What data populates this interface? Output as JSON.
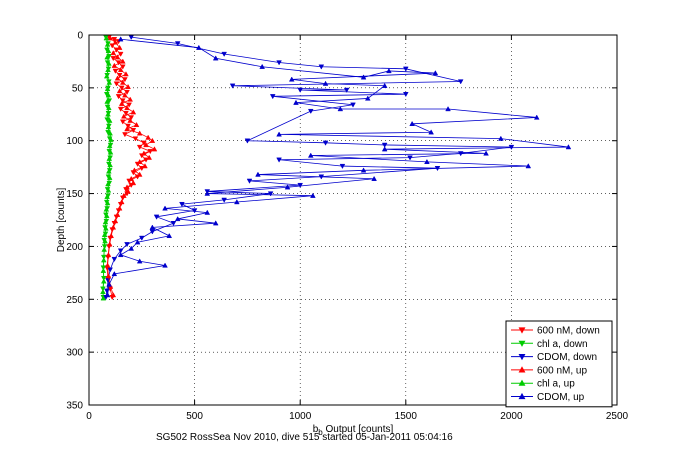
{
  "figure_caption": "SG502 RossSea Nov 2010, dive 515 started 05-Jan-2011 05:04:16",
  "chart_data": {
    "type": "scatter",
    "xlabel": "b_b Output [counts]",
    "xlabel_main": "b",
    "xlabel_sub": "b",
    "xlabel_rest": " Output [counts]",
    "ylabel": "Depth [counts]",
    "xlim": [
      0,
      2500
    ],
    "ylim": [
      0,
      350
    ],
    "y_reversed": true,
    "xticks": [
      0,
      500,
      1000,
      1500,
      2000,
      2500
    ],
    "yticks": [
      0,
      50,
      100,
      150,
      200,
      250,
      300,
      350
    ],
    "grid": "dotted",
    "legend_position": "bottom-right",
    "legend": [
      {
        "name": "600 nM, down",
        "color": "#ff0000",
        "marker": "triangle-down"
      },
      {
        "name": "chl a, down",
        "color": "#00cc00",
        "marker": "triangle-down"
      },
      {
        "name": "CDOM, down",
        "color": "#0000cc",
        "marker": "triangle-down"
      },
      {
        "name": "600 nM, up",
        "color": "#ff0000",
        "marker": "triangle-up"
      },
      {
        "name": "chl a, up",
        "color": "#00cc00",
        "marker": "triangle-up"
      },
      {
        "name": "CDOM, up",
        "color": "#0000cc",
        "marker": "triangle-up"
      }
    ],
    "series": [
      {
        "name": "600 nM, down",
        "color": "#ff0000",
        "marker": "triangle-down",
        "points": [
          [
            95,
            2
          ],
          [
            120,
            4
          ],
          [
            140,
            6
          ],
          [
            110,
            10
          ],
          [
            130,
            14
          ],
          [
            150,
            18
          ],
          [
            115,
            22
          ],
          [
            140,
            26
          ],
          [
            160,
            30
          ],
          [
            125,
            34
          ],
          [
            145,
            38
          ],
          [
            170,
            42
          ],
          [
            130,
            46
          ],
          [
            155,
            50
          ],
          [
            180,
            54
          ],
          [
            140,
            58
          ],
          [
            160,
            62
          ],
          [
            190,
            66
          ],
          [
            150,
            70
          ],
          [
            175,
            74
          ],
          [
            200,
            78
          ],
          [
            160,
            82
          ],
          [
            185,
            86
          ],
          [
            210,
            90
          ],
          [
            170,
            94
          ],
          [
            220,
            98
          ],
          [
            260,
            102
          ],
          [
            240,
            106
          ],
          [
            290,
            110
          ],
          [
            250,
            114
          ],
          [
            270,
            118
          ],
          [
            230,
            122
          ],
          [
            250,
            126
          ],
          [
            210,
            130
          ],
          [
            230,
            134
          ],
          [
            190,
            138
          ],
          [
            200,
            142
          ],
          [
            175,
            146
          ],
          [
            180,
            150
          ],
          [
            160,
            154
          ],
          [
            150,
            160
          ],
          [
            140,
            166
          ],
          [
            130,
            172
          ],
          [
            120,
            178
          ],
          [
            110,
            184
          ],
          [
            100,
            192
          ],
          [
            95,
            200
          ],
          [
            90,
            210
          ],
          [
            85,
            220
          ],
          [
            90,
            230
          ],
          [
            100,
            240
          ],
          [
            110,
            248
          ]
        ]
      },
      {
        "name": "chl a, down",
        "color": "#00cc00",
        "marker": "triangle-down",
        "points": [
          [
            80,
            2
          ],
          [
            90,
            8
          ],
          [
            85,
            14
          ],
          [
            95,
            20
          ],
          [
            88,
            26
          ],
          [
            92,
            32
          ],
          [
            86,
            38
          ],
          [
            94,
            44
          ],
          [
            90,
            50
          ],
          [
            84,
            56
          ],
          [
            96,
            62
          ],
          [
            88,
            68
          ],
          [
            92,
            74
          ],
          [
            86,
            80
          ],
          [
            94,
            86
          ],
          [
            90,
            92
          ],
          [
            98,
            98
          ],
          [
            102,
            104
          ],
          [
            96,
            110
          ],
          [
            100,
            116
          ],
          [
            94,
            122
          ],
          [
            98,
            128
          ],
          [
            92,
            134
          ],
          [
            96,
            140
          ],
          [
            88,
            146
          ],
          [
            90,
            152
          ],
          [
            84,
            158
          ],
          [
            86,
            164
          ],
          [
            80,
            170
          ],
          [
            82,
            176
          ],
          [
            76,
            182
          ],
          [
            78,
            188
          ],
          [
            72,
            194
          ],
          [
            74,
            200
          ],
          [
            70,
            210
          ],
          [
            68,
            220
          ],
          [
            70,
            230
          ],
          [
            66,
            240
          ],
          [
            68,
            248
          ]
        ]
      },
      {
        "name": "CDOM, down",
        "color": "#0000cc",
        "marker": "triangle-down",
        "points": [
          [
            200,
            2
          ],
          [
            420,
            8
          ],
          [
            640,
            18
          ],
          [
            900,
            26
          ],
          [
            1100,
            30
          ],
          [
            1500,
            32
          ],
          [
            1760,
            44
          ],
          [
            680,
            48
          ],
          [
            1220,
            52
          ],
          [
            1000,
            52
          ],
          [
            1500,
            56
          ],
          [
            870,
            58
          ],
          [
            1250,
            66
          ],
          [
            1050,
            72
          ],
          [
            750,
            100
          ],
          [
            1120,
            102
          ],
          [
            1400,
            104
          ],
          [
            2000,
            106
          ],
          [
            1760,
            112
          ],
          [
            1520,
            116
          ],
          [
            900,
            118
          ],
          [
            1200,
            124
          ],
          [
            1650,
            126
          ],
          [
            1100,
            134
          ],
          [
            760,
            138
          ],
          [
            1000,
            142
          ],
          [
            560,
            148
          ],
          [
            860,
            150
          ],
          [
            640,
            156
          ],
          [
            440,
            160
          ],
          [
            500,
            166
          ],
          [
            320,
            172
          ],
          [
            400,
            178
          ],
          [
            300,
            186
          ],
          [
            250,
            192
          ],
          [
            180,
            198
          ],
          [
            150,
            204
          ],
          [
            120,
            212
          ],
          [
            100,
            222
          ],
          [
            90,
            232
          ],
          [
            85,
            242
          ],
          [
            80,
            248
          ]
        ]
      },
      {
        "name": "600 nM, up",
        "color": "#ff0000",
        "marker": "triangle-up",
        "points": [
          [
            100,
            3
          ],
          [
            125,
            7
          ],
          [
            145,
            12
          ],
          [
            115,
            17
          ],
          [
            135,
            21
          ],
          [
            160,
            25
          ],
          [
            120,
            29
          ],
          [
            150,
            33
          ],
          [
            175,
            37
          ],
          [
            135,
            41
          ],
          [
            160,
            45
          ],
          [
            185,
            49
          ],
          [
            145,
            53
          ],
          [
            170,
            57
          ],
          [
            195,
            61
          ],
          [
            155,
            65
          ],
          [
            180,
            69
          ],
          [
            210,
            73
          ],
          [
            165,
            77
          ],
          [
            195,
            81
          ],
          [
            225,
            85
          ],
          [
            180,
            89
          ],
          [
            240,
            93
          ],
          [
            280,
            97
          ],
          [
            300,
            100
          ],
          [
            270,
            104
          ],
          [
            310,
            108
          ],
          [
            260,
            112
          ],
          [
            285,
            116
          ],
          [
            240,
            120
          ],
          [
            265,
            124
          ],
          [
            215,
            128
          ],
          [
            240,
            132
          ],
          [
            200,
            136
          ],
          [
            210,
            140
          ],
          [
            180,
            144
          ],
          [
            185,
            148
          ],
          [
            165,
            152
          ],
          [
            155,
            158
          ],
          [
            145,
            164
          ],
          [
            135,
            170
          ],
          [
            125,
            176
          ],
          [
            115,
            182
          ],
          [
            105,
            190
          ],
          [
            98,
            198
          ],
          [
            92,
            208
          ],
          [
            88,
            218
          ],
          [
            92,
            228
          ],
          [
            102,
            238
          ],
          [
            115,
            246
          ]
        ]
      },
      {
        "name": "chl a, up",
        "color": "#00cc00",
        "marker": "triangle-up",
        "points": [
          [
            82,
            3
          ],
          [
            88,
            9
          ],
          [
            92,
            15
          ],
          [
            86,
            21
          ],
          [
            94,
            27
          ],
          [
            90,
            33
          ],
          [
            84,
            39
          ],
          [
            96,
            45
          ],
          [
            88,
            51
          ],
          [
            92,
            57
          ],
          [
            86,
            63
          ],
          [
            94,
            69
          ],
          [
            90,
            75
          ],
          [
            98,
            81
          ],
          [
            92,
            87
          ],
          [
            100,
            93
          ],
          [
            104,
            99
          ],
          [
            98,
            105
          ],
          [
            102,
            111
          ],
          [
            96,
            117
          ],
          [
            100,
            123
          ],
          [
            94,
            129
          ],
          [
            98,
            135
          ],
          [
            90,
            141
          ],
          [
            92,
            147
          ],
          [
            86,
            153
          ],
          [
            88,
            159
          ],
          [
            82,
            165
          ],
          [
            84,
            171
          ],
          [
            78,
            177
          ],
          [
            80,
            183
          ],
          [
            74,
            189
          ],
          [
            76,
            195
          ],
          [
            72,
            203
          ],
          [
            70,
            213
          ],
          [
            68,
            223
          ],
          [
            70,
            233
          ],
          [
            66,
            243
          ],
          [
            68,
            249
          ]
        ]
      },
      {
        "name": "CDOM, up",
        "color": "#0000cc",
        "marker": "triangle-up",
        "points": [
          [
            150,
            4
          ],
          [
            520,
            12
          ],
          [
            600,
            22
          ],
          [
            820,
            30
          ],
          [
            1300,
            40
          ],
          [
            1420,
            34
          ],
          [
            1640,
            36
          ],
          [
            960,
            42
          ],
          [
            1120,
            46
          ],
          [
            1400,
            48
          ],
          [
            1320,
            60
          ],
          [
            980,
            64
          ],
          [
            1190,
            70
          ],
          [
            1700,
            70
          ],
          [
            2120,
            78
          ],
          [
            1530,
            84
          ],
          [
            1620,
            92
          ],
          [
            900,
            94
          ],
          [
            1950,
            98
          ],
          [
            2270,
            106
          ],
          [
            1400,
            108
          ],
          [
            1880,
            112
          ],
          [
            1050,
            114
          ],
          [
            1600,
            120
          ],
          [
            2080,
            124
          ],
          [
            1300,
            128
          ],
          [
            800,
            132
          ],
          [
            1350,
            136
          ],
          [
            940,
            144
          ],
          [
            560,
            150
          ],
          [
            1060,
            152
          ],
          [
            700,
            158
          ],
          [
            360,
            164
          ],
          [
            560,
            168
          ],
          [
            420,
            174
          ],
          [
            600,
            178
          ],
          [
            300,
            182
          ],
          [
            380,
            190
          ],
          [
            230,
            196
          ],
          [
            200,
            202
          ],
          [
            150,
            208
          ],
          [
            240,
            214
          ],
          [
            360,
            218
          ],
          [
            120,
            226
          ],
          [
            95,
            236
          ],
          [
            88,
            246
          ]
        ]
      }
    ]
  }
}
